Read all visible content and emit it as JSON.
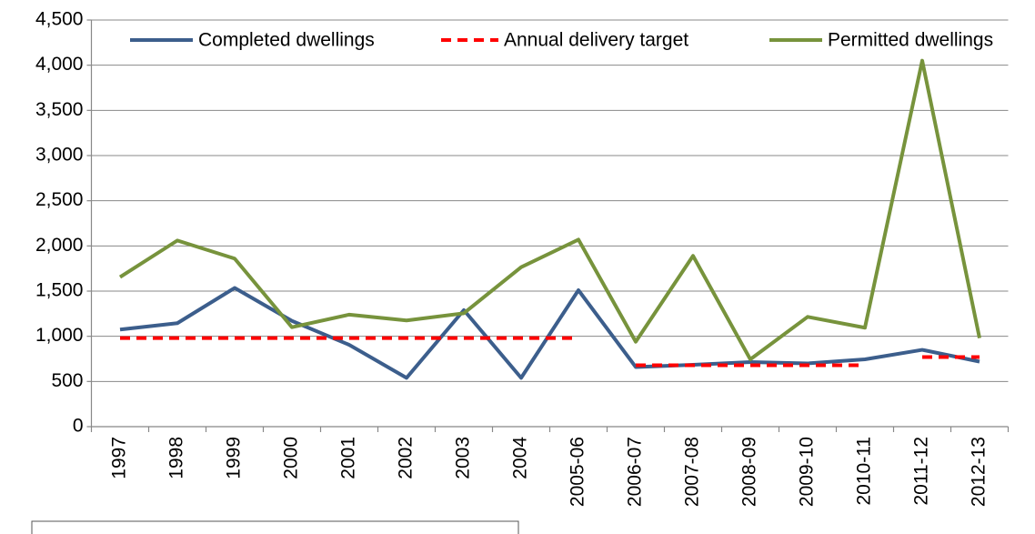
{
  "chart_data": {
    "type": "line",
    "categories": [
      "1997",
      "1998",
      "1999",
      "2000",
      "2001",
      "2002",
      "2003",
      "2004",
      "2005-06",
      "2006-07",
      "2007-08",
      "2008-09",
      "2009-10",
      "2010-11",
      "2011-12",
      "2012-13"
    ],
    "series": [
      {
        "name": "Completed dwellings",
        "color": "#3c5e8c",
        "values": [
          1075,
          1145,
          1535,
          1170,
          905,
          540,
          1290,
          540,
          1510,
          660,
          685,
          715,
          700,
          745,
          850,
          720
        ]
      },
      {
        "name": "Annual delivery target",
        "color": "#ff0000",
        "dashed": true,
        "segments": true,
        "values": [
          980,
          980,
          980,
          980,
          980,
          980,
          980,
          980,
          980,
          680,
          680,
          680,
          680,
          680,
          770,
          770
        ]
      },
      {
        "name": "Permitted dwellings",
        "color": "#77933c",
        "values": [
          1655,
          2060,
          1860,
          1100,
          1240,
          1175,
          1255,
          1765,
          2070,
          940,
          1890,
          745,
          1215,
          1095,
          4050,
          980
        ]
      }
    ],
    "ylim": [
      0,
      4500
    ],
    "yticks": [
      0,
      500,
      {
        "value": 1000,
        "label": "1,000"
      },
      {
        "value": 1500,
        "label": "1,500"
      },
      {
        "value": 2000,
        "label": "2,000"
      },
      {
        "value": 2500,
        "label": "2,500"
      },
      {
        "value": 3000,
        "label": "3,000"
      },
      {
        "value": 3500,
        "label": "3,500"
      },
      {
        "value": 4000,
        "label": "4,000"
      },
      {
        "value": 4500,
        "label": "4,500"
      }
    ],
    "grid": true,
    "legend": "top"
  }
}
